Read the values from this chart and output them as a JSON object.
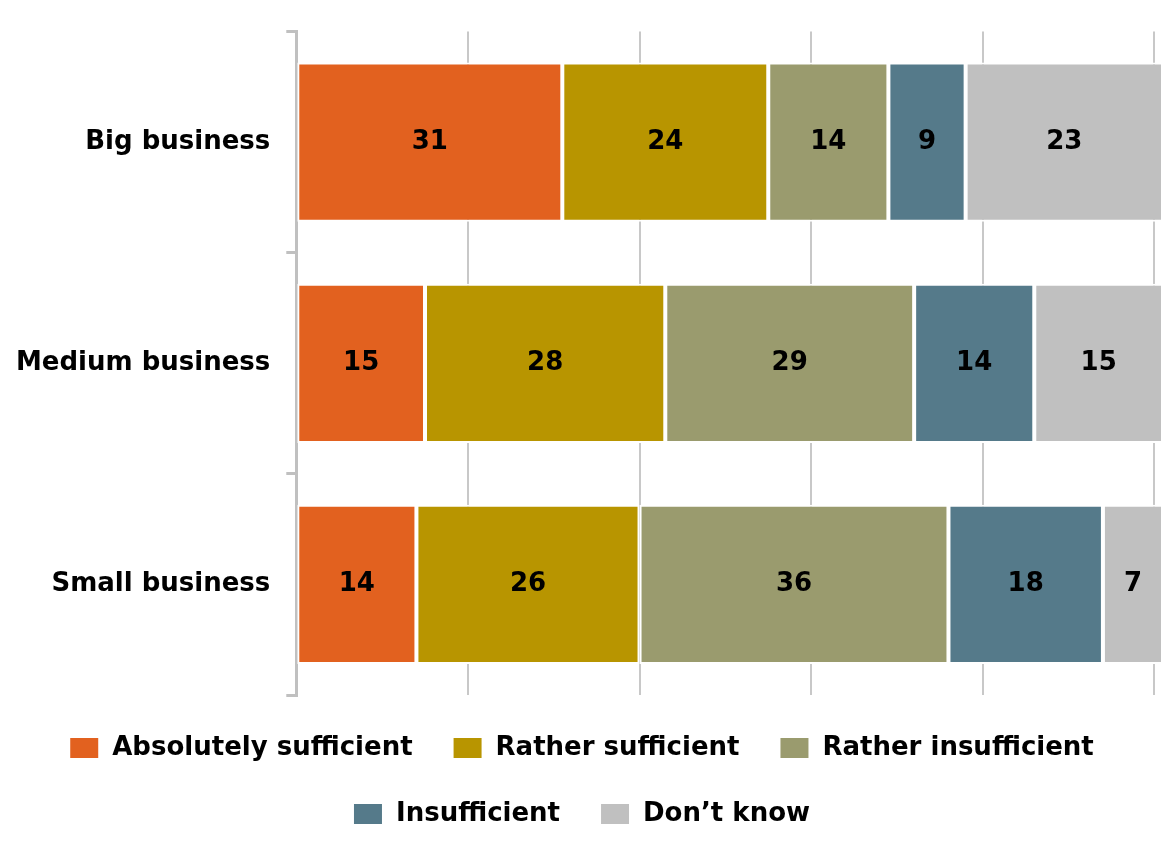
{
  "chart_data": {
    "type": "bar",
    "orientation": "horizontal",
    "stacked": true,
    "categories": [
      "Big business",
      "Medium business",
      "Small business"
    ],
    "series": [
      {
        "name": "Absolutely sufficient",
        "color": "#e2611f",
        "values": [
          31,
          15,
          14
        ]
      },
      {
        "name": "Rather sufficient",
        "color": "#b89500",
        "values": [
          24,
          28,
          26
        ]
      },
      {
        "name": "Rather insufficient",
        "color": "#9a9b6e",
        "values": [
          14,
          29,
          36
        ]
      },
      {
        "name": "Insufficient",
        "color": "#557a8a",
        "values": [
          9,
          14,
          18
        ]
      },
      {
        "name": "Don’t know",
        "color": "#c0c0c0",
        "values": [
          23,
          15,
          7
        ]
      }
    ],
    "xlim": [
      0,
      101
    ],
    "xticks": [
      {
        "value": 0,
        "label": null
      },
      {
        "value": 20,
        "label": null
      },
      {
        "value": 40,
        "label": null
      },
      {
        "value": 60,
        "label": null
      },
      {
        "value": 80,
        "label": null
      },
      {
        "value": 100,
        "label": null
      }
    ],
    "grid": "x",
    "tick_labels": "y",
    "legend": "bottom",
    "data_labels": true
  }
}
